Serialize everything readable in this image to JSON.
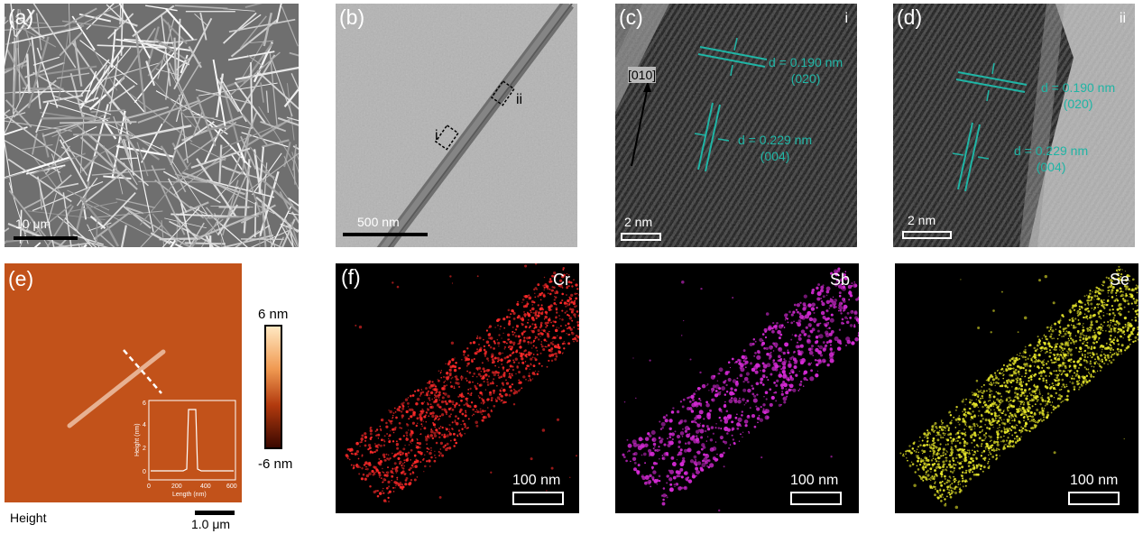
{
  "panels": {
    "a": {
      "label": "(a)",
      "scalebar": "10 μm"
    },
    "b": {
      "label": "(b)",
      "scalebar": "500 nm",
      "regions": [
        "i",
        "ii"
      ]
    },
    "c": {
      "label": "(c)",
      "corner": "i",
      "direction": "[010]",
      "scalebar": "2 nm",
      "spacing1": "d = 0.190 nm",
      "plane1": "(020)",
      "spacing2": "d = 0.229 nm",
      "plane2": "(004)"
    },
    "d": {
      "label": "(d)",
      "corner": "ii",
      "scalebar": "2 nm",
      "spacing1": "d = 0.190 nm",
      "plane1": "(020)",
      "spacing2": "d = 0.229 nm",
      "plane2": "(004)"
    },
    "e": {
      "label": "(e)",
      "colorbar_max": "6 nm",
      "colorbar_min": "-6 nm",
      "caption": "Height",
      "scalebar": "1.0 μm",
      "inset": {
        "xlabel": "Length (nm)",
        "ylabel": "Height (nm)",
        "xticks": [
          "0",
          "200",
          "400",
          "600"
        ],
        "yticks": [
          "0",
          "2",
          "4",
          "6"
        ]
      }
    },
    "f": {
      "label": "(f)",
      "maps": [
        {
          "element": "Cr",
          "scalebar": "100 nm",
          "color": "#ff2a2a"
        },
        {
          "element": "Sb",
          "scalebar": "100 nm",
          "color": "#d62ad6"
        },
        {
          "element": "Se",
          "scalebar": "100 nm",
          "color": "#e6e62a"
        }
      ]
    }
  },
  "colors": {
    "annotation": "#1fb5a5",
    "afm_background": "#c2521a"
  }
}
